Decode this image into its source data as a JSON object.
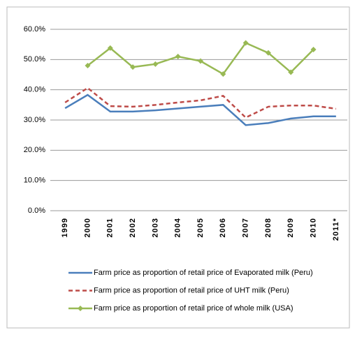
{
  "chart_data": {
    "type": "line",
    "categories": [
      "1999",
      "2000",
      "2001",
      "2002",
      "2003",
      "2004",
      "2005",
      "2006",
      "2007",
      "2008",
      "2009",
      "2010",
      "2011*"
    ],
    "series": [
      {
        "name": "Farm price as proportion  of retail price of Evaporated milk (Peru)",
        "color": "#4a7ebb",
        "line_style": "solid",
        "marker": "none",
        "values": [
          33.9,
          38.3,
          32.8,
          32.8,
          33.2,
          33.8,
          34.4,
          35.0,
          28.3,
          29.0,
          30.5,
          31.2,
          31.2
        ]
      },
      {
        "name": "Farm price as proportion  of retail price of UHT milk (Peru)",
        "color": "#be4b48",
        "line_style": "dashed",
        "marker": "none",
        "values": [
          35.8,
          40.6,
          34.6,
          34.4,
          35.0,
          35.8,
          36.5,
          38.0,
          30.8,
          34.4,
          34.8,
          34.8,
          33.7
        ]
      },
      {
        "name": "Farm price as proportion  of retail price of whole milk (USA)",
        "color": "#98b954",
        "line_style": "solid",
        "marker": "diamond",
        "values": [
          null,
          48.0,
          53.8,
          47.5,
          48.5,
          51.0,
          49.5,
          45.2,
          55.5,
          52.2,
          45.8,
          53.3,
          null
        ]
      }
    ],
    "ylim": [
      0,
      60
    ],
    "yticks": [
      {
        "value": 0,
        "label": "0.0%"
      },
      {
        "value": 10,
        "label": "10.0%"
      },
      {
        "value": 20,
        "label": "20.0%"
      },
      {
        "value": 30,
        "label": "30.0%"
      },
      {
        "value": 40,
        "label": "40.0%"
      },
      {
        "value": 50,
        "label": "50.0%"
      },
      {
        "value": 60,
        "label": "60.0%"
      }
    ],
    "grid": true,
    "legend": "bottom"
  }
}
